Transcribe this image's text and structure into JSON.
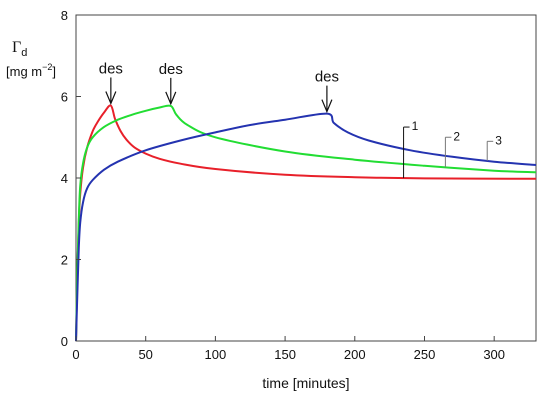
{
  "chart_data": {
    "type": "line",
    "xlabel": "time [minutes]",
    "ylabel_symbol": "Γ",
    "ylabel_subscript": "d",
    "ylabel_unit_prefix": "[mg m",
    "ylabel_unit_exponent": "−2",
    "ylabel_unit_suffix": "]",
    "xlim": [
      0,
      330
    ],
    "ylim": [
      0,
      8
    ],
    "x_ticks": [
      0,
      50,
      100,
      150,
      200,
      250,
      300
    ],
    "x_tick_labels": [
      "0",
      "50",
      "100",
      "150",
      "200",
      "250",
      "300"
    ],
    "y_ticks": [
      0,
      2,
      4,
      6,
      8
    ],
    "y_tick_labels": [
      "0",
      "2",
      "4",
      "6",
      "8"
    ],
    "grid": false,
    "series": [
      {
        "name": "1",
        "color": "#e8202a",
        "x": [
          0,
          1,
          2,
          3,
          5,
          8,
          12,
          16,
          20,
          25,
          28,
          32,
          36,
          42,
          50,
          60,
          75,
          100,
          150,
          200,
          250,
          330
        ],
        "y": [
          0,
          1.7,
          2.9,
          3.6,
          4.25,
          4.75,
          5.15,
          5.4,
          5.6,
          5.78,
          5.45,
          5.15,
          4.95,
          4.75,
          4.6,
          4.47,
          4.35,
          4.22,
          4.08,
          4.02,
          3.99,
          3.98
        ]
      },
      {
        "name": "2",
        "color": "#22dd33",
        "x": [
          0,
          1,
          2,
          3,
          5,
          8,
          12,
          20,
          30,
          40,
          50,
          60,
          68,
          72,
          80,
          100,
          150,
          200,
          250,
          300,
          330
        ],
        "y": [
          0,
          1.8,
          3.0,
          3.8,
          4.35,
          4.75,
          5.0,
          5.25,
          5.43,
          5.55,
          5.65,
          5.73,
          5.77,
          5.55,
          5.3,
          5.0,
          4.65,
          4.45,
          4.3,
          4.18,
          4.14
        ]
      },
      {
        "name": "3",
        "color": "#2433b0",
        "x": [
          0,
          1,
          2,
          3,
          5,
          8,
          12,
          20,
          30,
          50,
          75,
          100,
          125,
          150,
          180,
          185,
          195,
          210,
          240,
          270,
          300,
          330
        ],
        "y": [
          0,
          1.2,
          2.3,
          2.9,
          3.4,
          3.75,
          3.95,
          4.2,
          4.4,
          4.68,
          4.92,
          5.12,
          5.3,
          5.43,
          5.58,
          5.35,
          5.12,
          4.92,
          4.68,
          4.52,
          4.4,
          4.32
        ]
      }
    ],
    "annotations": [
      {
        "text": "des",
        "x": 25,
        "y": 5.78
      },
      {
        "text": "des",
        "x": 68,
        "y": 5.77
      },
      {
        "text": "des",
        "x": 180,
        "y": 5.58
      }
    ],
    "curve_labels": [
      {
        "text": "1",
        "series": "1",
        "x": 235
      },
      {
        "text": "2",
        "series": "2",
        "x": 265
      },
      {
        "text": "3",
        "series": "3",
        "x": 295
      }
    ]
  }
}
